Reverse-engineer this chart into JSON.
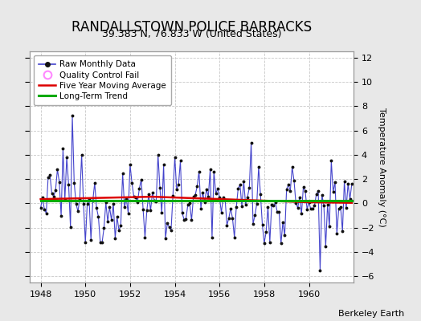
{
  "title": "RANDALLSTOWN POLICE BARRACKS",
  "subtitle": "39.383 N, 76.833 W (United States)",
  "ylabel": "Temperature Anomaly (°C)",
  "attribution": "Berkeley Earth",
  "xlim": [
    1947.5,
    1962.0
  ],
  "ylim": [
    -6.5,
    12.5
  ],
  "yticks": [
    -6,
    -4,
    -2,
    0,
    2,
    4,
    6,
    8,
    10,
    12
  ],
  "xticks": [
    1948,
    1950,
    1952,
    1954,
    1956,
    1958,
    1960
  ],
  "background_color": "#e8e8e8",
  "plot_bg_color": "#ffffff",
  "grid_color": "#c8c8c8",
  "raw_color": "#4444cc",
  "raw_marker_color": "#111111",
  "moving_avg_color": "#dd0000",
  "trend_color": "#00aa00",
  "legend_qc_color": "#ff88ff",
  "title_fontsize": 12,
  "subtitle_fontsize": 9,
  "tick_fontsize": 8,
  "ylabel_fontsize": 8
}
